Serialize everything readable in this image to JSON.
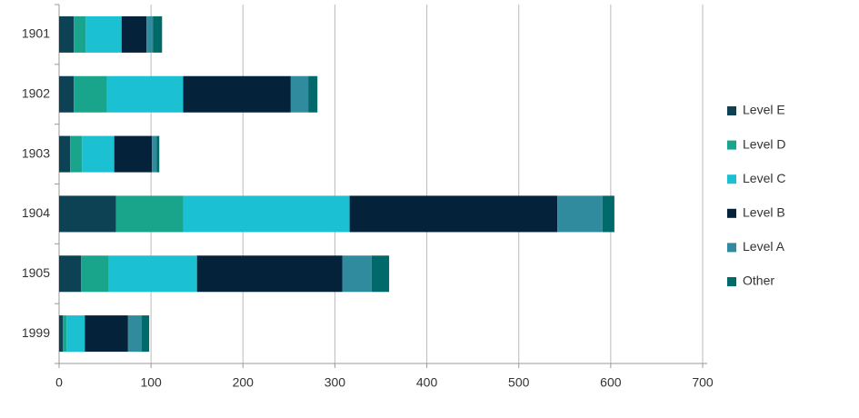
{
  "chart_data": {
    "type": "stacked_barh",
    "categories": [
      "1901",
      "1902",
      "1903",
      "1904",
      "1905",
      "1999"
    ],
    "series": [
      {
        "name": "Level E",
        "color": "#0c4253",
        "values": [
          16,
          16,
          12,
          62,
          24,
          4
        ]
      },
      {
        "name": "Level D",
        "color": "#19a58c",
        "values": [
          13,
          36,
          13,
          73,
          30,
          4
        ]
      },
      {
        "name": "Level C",
        "color": "#1bc0d3",
        "values": [
          39,
          83,
          35,
          181,
          96,
          20
        ]
      },
      {
        "name": "Level B",
        "color": "#04233b",
        "values": [
          27,
          117,
          41,
          226,
          158,
          47
        ]
      },
      {
        "name": "Level A",
        "color": "#2f8b9d",
        "values": [
          7,
          19,
          5,
          49,
          32,
          15
        ]
      },
      {
        "name": "Other",
        "color": "#006a6a",
        "values": [
          10,
          10,
          3,
          13,
          19,
          8
        ]
      }
    ],
    "xlim": [
      0,
      700
    ],
    "xticks": [
      0,
      100,
      200,
      300,
      400,
      500,
      600,
      700
    ],
    "grid": true,
    "legend": "right"
  }
}
